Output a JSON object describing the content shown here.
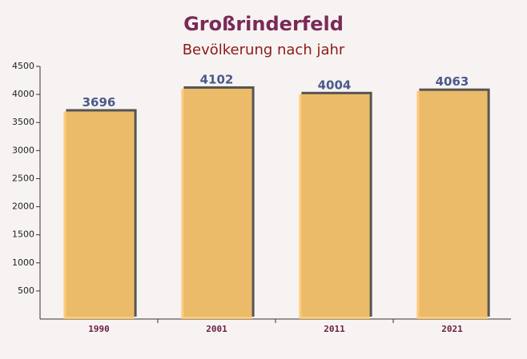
{
  "chart_data": {
    "type": "bar",
    "title": "Großrinderfeld",
    "subtitle": "Bevölkerung nach jahr",
    "categories": [
      "1990",
      "2001",
      "2011",
      "2021"
    ],
    "values": [
      3696,
      4102,
      4004,
      4063
    ],
    "color": "#fdc76b",
    "ylim": [
      0,
      4500
    ],
    "yticks": [
      500,
      1000,
      1500,
      2000,
      2500,
      3000,
      3500,
      4000,
      4500
    ],
    "grid": false
  }
}
